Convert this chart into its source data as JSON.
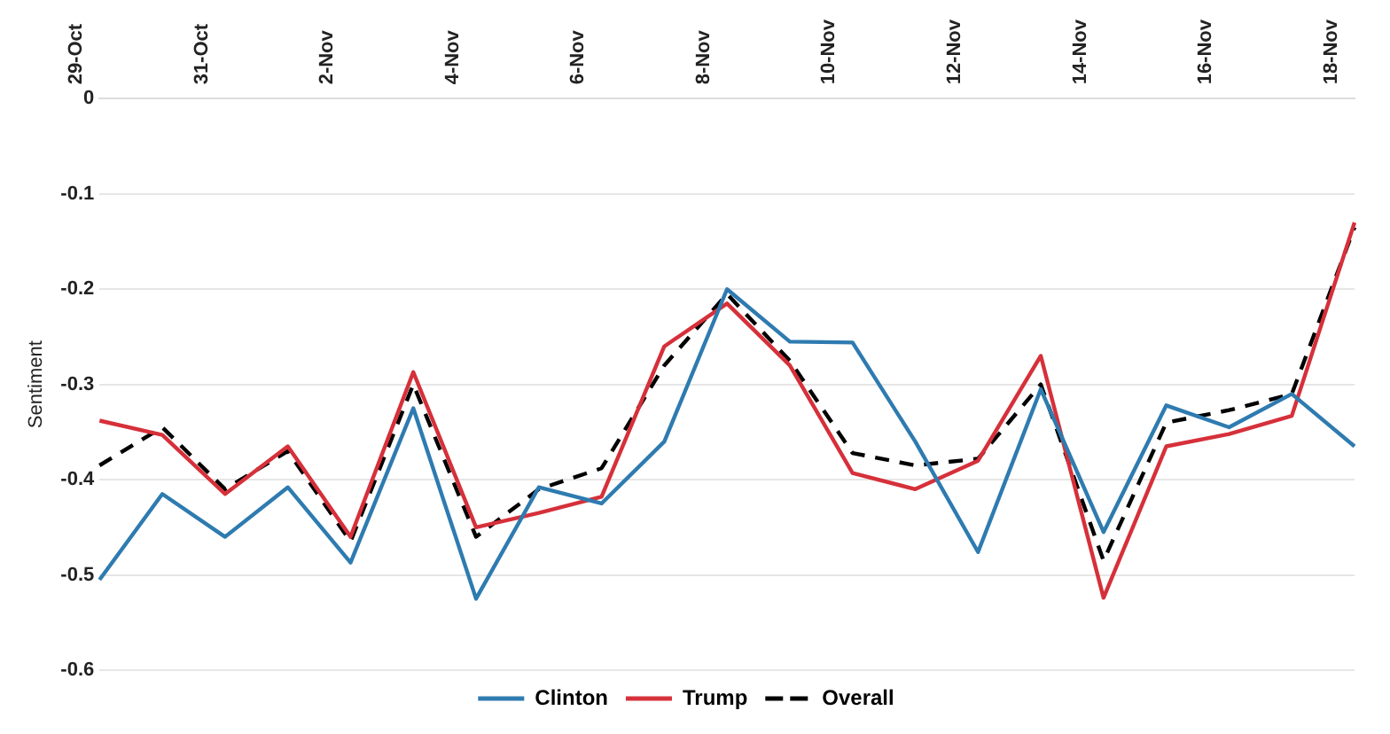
{
  "chart_data": {
    "type": "line",
    "ylabel": "Sentiment",
    "categories": [
      "29-Oct",
      null,
      "31-Oct",
      null,
      "2-Nov",
      null,
      "4-Nov",
      null,
      "6-Nov",
      null,
      "8-Nov",
      null,
      "10-Nov",
      null,
      "12-Nov",
      null,
      "14-Nov",
      null,
      "16-Nov",
      null,
      "18-Nov"
    ],
    "series": [
      {
        "name": "Clinton",
        "color": "#2e7bb0",
        "line_style": "solid",
        "values": [
          -0.505,
          -0.415,
          -0.46,
          -0.408,
          -0.487,
          -0.325,
          -0.525,
          -0.408,
          -0.425,
          -0.36,
          -0.2,
          -0.255,
          -0.256,
          -0.36,
          -0.476,
          -0.305,
          -0.455,
          -0.322,
          -0.345,
          -0.31,
          -0.365
        ]
      },
      {
        "name": "Trump",
        "color": "#d6303a",
        "line_style": "solid",
        "values": [
          -0.338,
          -0.353,
          -0.415,
          -0.365,
          -0.46,
          -0.287,
          -0.45,
          -0.435,
          -0.418,
          -0.26,
          -0.215,
          -0.28,
          -0.393,
          -0.41,
          -0.38,
          -0.27,
          -0.524,
          -0.365,
          -0.352,
          -0.333,
          -0.13
        ]
      },
      {
        "name": "Overall",
        "color": "#000000",
        "line_style": "dashed",
        "values": [
          -0.385,
          -0.345,
          -0.41,
          -0.37,
          -0.465,
          -0.3,
          -0.46,
          -0.41,
          -0.388,
          -0.28,
          -0.205,
          -0.275,
          -0.372,
          -0.385,
          -0.378,
          -0.3,
          -0.485,
          -0.34,
          -0.327,
          -0.31,
          -0.135
        ]
      }
    ],
    "ylim": [
      -0.6,
      0
    ],
    "yticks": [
      0,
      -0.1,
      -0.2,
      -0.3,
      -0.4,
      -0.5,
      -0.6
    ],
    "grid": "y",
    "legend": "bottom",
    "marker": "none"
  }
}
